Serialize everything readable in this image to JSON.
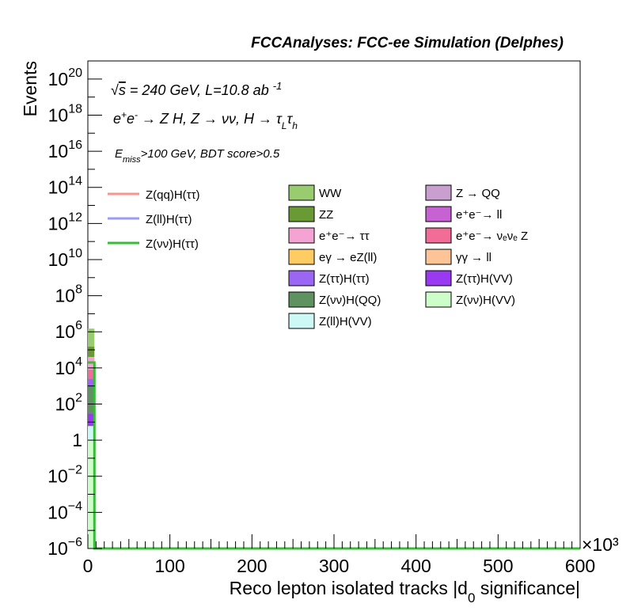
{
  "chart_data": {
    "type": "bar",
    "title": "FCCAnalyses: FCC-ee Simulation (Delphes)",
    "xlabel": "Reco lepton isolated tracks |d0 significance|",
    "ylabel": "Events",
    "x_multiplier": "×10³",
    "xlim": [
      0,
      600000
    ],
    "ylim": [
      1e-06,
      1e+21
    ],
    "y_scale": "log",
    "grid": false,
    "x_ticks": [
      0,
      100,
      200,
      300,
      400,
      500,
      600
    ],
    "x_tick_labels": [
      "0",
      "100",
      "200",
      "300",
      "400",
      "500",
      "600"
    ],
    "y_ticks": [
      {
        "value": 1e-06,
        "base": "10",
        "exp": "−6"
      },
      {
        "value": 0.0001,
        "base": "10",
        "exp": "−4"
      },
      {
        "value": 0.01,
        "base": "10",
        "exp": "−2"
      },
      {
        "value": 1,
        "base": "1",
        "exp": ""
      },
      {
        "value": 100.0,
        "base": "10",
        "exp": "2"
      },
      {
        "value": 10000.0,
        "base": "10",
        "exp": "4"
      },
      {
        "value": 1000000.0,
        "base": "10",
        "exp": "6"
      },
      {
        "value": 100000000.0,
        "base": "10",
        "exp": "8"
      },
      {
        "value": 10000000000.0,
        "base": "10",
        "exp": "10"
      },
      {
        "value": 1000000000000.0,
        "base": "10",
        "exp": "12"
      },
      {
        "value": 100000000000000.0,
        "base": "10",
        "exp": "14"
      },
      {
        "value": 1e+16,
        "base": "10",
        "exp": "16"
      },
      {
        "value": 1e+18,
        "base": "10",
        "exp": "18"
      },
      {
        "value": 1e+20,
        "base": "10",
        "exp": "20"
      }
    ],
    "annotations": {
      "energy": "√s = 240 GeV, L=10.8 ab⁻¹",
      "process": "e⁺e⁻ → Z H, Z → νν, H → τ_L τ_h",
      "selection": "E_miss>100 GeV, BDT score>0.5"
    },
    "signals": [
      {
        "name": "Z(qq)H(ττ)",
        "color": "#f7948d"
      },
      {
        "name": "Z(ll)H(ττ)",
        "color": "#9a9cf7"
      },
      {
        "name": "Z(νν)H(ττ)",
        "color": "#37bc37"
      }
    ],
    "backgrounds_col1": [
      {
        "name": "WW",
        "color": "#98cc6e"
      },
      {
        "name": "ZZ",
        "color": "#6a9a36"
      },
      {
        "name": "e⁺e⁻→ ττ",
        "color": "#f5a3d3"
      },
      {
        "name": "eγ → eZ(ll)",
        "color": "#fecc63"
      },
      {
        "name": "Z(ττ)H(ττ)",
        "color": "#9b66f3"
      },
      {
        "name": "Z(νν)H(QQ)",
        "color": "#5f9261"
      },
      {
        "name": "Z(ll)H(VV)",
        "color": "#ccf8f6"
      }
    ],
    "backgrounds_col2": [
      {
        "name": "Z → QQ",
        "color": "#c99fd0"
      },
      {
        "name": "e⁺e⁻→ ll",
        "color": "#c762d2"
      },
      {
        "name": "e⁺e⁻→ νₑνₑ Z",
        "color": "#f16c97"
      },
      {
        "name": "γγ → ll",
        "color": "#fdc597"
      },
      {
        "name": "Z(ττ)H(VV)",
        "color": "#993af2"
      },
      {
        "name": "Z(νν)H(VV)",
        "color": "#cdfdc8"
      }
    ],
    "stack_first_bin": {
      "x_range": [
        0,
        8000
      ],
      "total": 1500000,
      "segments": [
        {
          "name": "WW",
          "top": 1500000,
          "bottom": 150000
        },
        {
          "name": "ZZ",
          "top": 150000,
          "bottom": 40000
        },
        {
          "name": "e⁺e⁻→ ττ",
          "top": 40000,
          "bottom": 8000
        },
        {
          "name": "e⁺e⁻→ νₑνₑ Z",
          "top": 8000,
          "bottom": 2500
        },
        {
          "name": "Z(ττ)H(ττ)",
          "top": 2500,
          "bottom": 1000
        },
        {
          "name": "Z(νν)H(QQ)",
          "top": 1000,
          "bottom": 30
        },
        {
          "name": "Z(ττ)H(VV)",
          "top": 30,
          "bottom": 6
        },
        {
          "name": "Z(ll)H(VV)",
          "top": 6,
          "bottom": 1
        },
        {
          "name": "Z(νν)H(VV)",
          "top": 1,
          "bottom": 1e-06
        }
      ]
    },
    "signal_lines": [
      {
        "name": "Z(νν)H(ττ)",
        "x": [
          0,
          8000,
          8000,
          600000
        ],
        "y": [
          20000,
          20000,
          1e-06,
          1e-06
        ]
      }
    ]
  }
}
